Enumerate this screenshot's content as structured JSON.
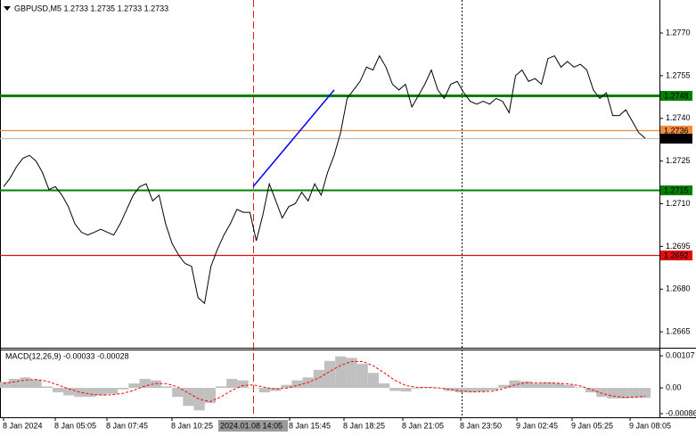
{
  "chart_data": [
    {
      "type": "line",
      "title": "GBPUSD,M5  1.2733 1.2735 1.2733 1.2733",
      "color": "#000000",
      "values": [
        1.2716,
        1.2719,
        1.2723,
        1.2726,
        1.2727,
        1.2725,
        1.2721,
        1.2715,
        1.2716,
        1.2713,
        1.2709,
        1.2703,
        1.27,
        1.2699,
        1.27,
        1.2701,
        1.27,
        1.2699,
        1.2703,
        1.2708,
        1.2713,
        1.2716,
        1.2717,
        1.2711,
        1.2713,
        1.2703,
        1.2696,
        1.2692,
        1.2689,
        1.2688,
        1.2677,
        1.2675,
        1.2688,
        1.2694,
        1.2699,
        1.2703,
        1.2708,
        1.2707,
        1.2707,
        1.2697,
        1.2706,
        1.2717,
        1.2711,
        1.2705,
        1.2709,
        1.271,
        1.2714,
        1.2711,
        1.2717,
        1.2713,
        1.2721,
        1.2727,
        1.2735,
        1.2747,
        1.275,
        1.2753,
        1.2758,
        1.2757,
        1.2762,
        1.2758,
        1.2752,
        1.275,
        1.2752,
        1.2744,
        1.2748,
        1.2752,
        1.2757,
        1.275,
        1.2747,
        1.2752,
        1.2753,
        1.2749,
        1.2746,
        1.2745,
        1.2746,
        1.2745,
        1.2747,
        1.2746,
        1.2742,
        1.2755,
        1.2757,
        1.2753,
        1.2754,
        1.2752,
        1.2761,
        1.2762,
        1.2758,
        1.276,
        1.2758,
        1.2759,
        1.2757,
        1.275,
        1.2747,
        1.2749,
        1.2741,
        1.2741,
        1.2743,
        1.2739,
        1.2735,
        1.2733
      ],
      "ylim": [
        1.26594,
        1.27816
      ],
      "yticks": [
        {
          "value": 1.277,
          "label": "1.2770"
        },
        1.2755,
        {
          "value": 1.274,
          "label": "1.2740"
        },
        1.2725,
        {
          "value": 1.271,
          "label": "1.2710"
        },
        1.2695,
        {
          "value": 1.268,
          "label": "1.2680"
        },
        1.2665
      ],
      "levels": [
        {
          "value": 1.2748,
          "color": "#008000"
        },
        {
          "value": 1.2736,
          "color": "#f08c3c"
        },
        {
          "value": 1.2733,
          "color": "#c0c0c0",
          "label_color": "#000000"
        },
        {
          "value": 1.2715,
          "color": "#008000"
        },
        {
          "value": 1.2692,
          "color": "#e01010"
        }
      ],
      "trendline": {
        "values": [
          1.2716,
          1.275
        ],
        "color": "#0000ff"
      }
    },
    {
      "type": "macd",
      "title": "MACD(12,26,9) -0.00033 -0.00028",
      "histogram": {
        "color": "#c0c0c0",
        "values": [
          0.0002,
          0.0003,
          0.00035,
          0.00028,
          5e-05,
          -0.00015,
          -0.00025,
          -0.0003,
          -0.0003,
          -0.00025,
          -0.0002,
          -5e-05,
          0.00015,
          0.0003,
          0.00025,
          5e-05,
          -0.0003,
          -0.0006,
          -0.00075,
          -0.0005,
          5e-05,
          0.0003,
          0.00025,
          0,
          -0.00015,
          -0.0001,
          0.0001,
          0.00025,
          0.00035,
          0.0006,
          0.0009,
          0.00105,
          0.001,
          0.0008,
          0.0005,
          0.00015,
          -0.0001,
          -0.00012,
          -2e-05,
          3e-05,
          0,
          -0.0001,
          -0.00015,
          -0.00015,
          -0.00012,
          -8e-05,
          0.0001,
          0.00025,
          0.00022,
          0.00015,
          0.00018,
          0.00015,
          0.0001,
          2e-05,
          -0.00015,
          -0.0003,
          -0.00035,
          -0.00035,
          -0.00033,
          -0.00033
        ]
      },
      "signal": {
        "color": "#ff0000",
        "values": [
          0.00015,
          0.0002,
          0.00026,
          0.00028,
          0.00022,
          0.0001,
          -3e-05,
          -0.00014,
          -0.00021,
          -0.00024,
          -0.00023,
          -0.00018,
          -8e-05,
          6e-05,
          0.00015,
          0.00014,
          3e-05,
          -0.00017,
          -0.00038,
          -0.00046,
          -0.0003,
          -8e-05,
          8e-05,
          0.0001,
          2e-05,
          -4e-05,
          -1e-05,
          8e-05,
          0.00018,
          0.00033,
          0.00055,
          0.00075,
          0.00088,
          0.00088,
          0.00074,
          0.0005,
          0.00025,
          8e-05,
          2e-05,
          1e-05,
          0,
          -5e-05,
          -0.0001,
          -0.00013,
          -0.00013,
          -0.00011,
          -2e-05,
          0.0001,
          0.00017,
          0.00017,
          0.00017,
          0.00016,
          0.00013,
          7e-05,
          -5e-05,
          -0.00018,
          -0.00027,
          -0.00031,
          -0.00031,
          -0.00028
        ]
      },
      "ylim": [
        -0.00098,
        0.00128
      ],
      "yticks": [
        0.00107,
        {
          "value": 0,
          "label": "0.00"
        },
        -0.00086
      ]
    }
  ],
  "x_axis": {
    "labels": [
      "8 Jan 2024",
      "8 Jan 05:05",
      "8 Jan 07:45",
      "8 Jan 10:25",
      "8 Jan 15:45",
      "8 Jan 18:25",
      "8 Jan 21:05",
      "8 Jan 23:50",
      "9 Jan 02:45",
      "9 Jan 05:25",
      "9 Jan 08:05"
    ],
    "crosshair": "2024.01.08 14:05"
  }
}
